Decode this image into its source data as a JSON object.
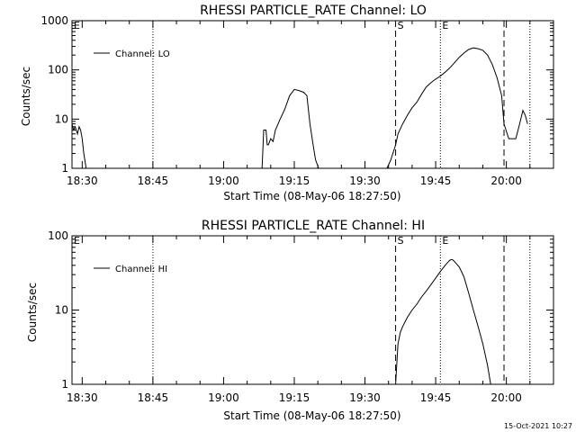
{
  "footer": {
    "timestamp": "15-Oct-2021 10:27"
  },
  "chart_data": [
    {
      "type": "line",
      "title": "RHESSI PARTICLE_RATE Channel: LO",
      "xlabel": "Start Time (08-May-06 18:27:50)",
      "ylabel": "Counts/sec",
      "y_scale": "log",
      "ylim": [
        1,
        1000
      ],
      "y_ticks": [
        1,
        10,
        100,
        1000
      ],
      "y_tick_labels": [
        "1",
        "10",
        "100",
        "1000"
      ],
      "xlim": [
        "18:27:50",
        "20:10:00"
      ],
      "x_ticks": [
        "18:30",
        "18:45",
        "19:00",
        "19:15",
        "19:30",
        "19:45",
        "20:00"
      ],
      "legend": {
        "position": "top-left",
        "entries": [
          "Channel: LO"
        ]
      },
      "markers": [
        {
          "time": "18:27:50",
          "label": "E",
          "style": "dotted"
        },
        {
          "time": "18:45:00",
          "label": "",
          "style": "dotted"
        },
        {
          "time": "19:36:30",
          "label": "S",
          "style": "dashed"
        },
        {
          "time": "19:46:00",
          "label": "E",
          "style": "dotted"
        },
        {
          "time": "19:59:30",
          "label": "",
          "style": "dashed"
        },
        {
          "time": "20:05:00",
          "label": "",
          "style": "dotted"
        }
      ],
      "series": [
        {
          "name": "Channel: LO",
          "segments": [
            {
              "x": [
                "18:27:50",
                "18:28:10",
                "18:28:30",
                "18:29:00",
                "18:29:20",
                "18:29:40",
                "18:30:00",
                "18:30:20",
                "18:30:50"
              ],
              "y": [
                8,
                6,
                7,
                5,
                7,
                6,
                4,
                2,
                1
              ]
            },
            {
              "x": [
                "19:08:10",
                "19:08:30",
                "19:09:00",
                "19:09:15",
                "19:09:30",
                "19:10:00",
                "19:10:30",
                "19:11:00",
                "19:12:00",
                "19:13:00",
                "19:14:00",
                "19:15:00",
                "19:16:00",
                "19:17:00",
                "19:17:40",
                "19:18:20",
                "19:19:00",
                "19:19:30",
                "19:20:10"
              ],
              "y": [
                1,
                6,
                6,
                3,
                3,
                4,
                3.5,
                6,
                10,
                16,
                30,
                40,
                38,
                35,
                30,
                8,
                3,
                1.5,
                1
              ]
            },
            {
              "x": [
                "19:34:40",
                "19:35:30",
                "19:36:30",
                "19:37:00",
                "19:38:00",
                "19:39:00",
                "19:40:00",
                "19:41:00",
                "19:42:00",
                "19:43:00",
                "19:44:00",
                "19:45:00",
                "19:46:00",
                "19:47:00",
                "19:48:00",
                "19:49:00",
                "19:50:00",
                "19:51:00",
                "19:52:00",
                "19:53:00",
                "19:54:00",
                "19:55:00",
                "19:56:00",
                "19:57:00",
                "19:58:00",
                "19:59:00",
                "19:59:30",
                "20:00:30",
                "20:01:30",
                "20:02:00",
                "20:02:40",
                "20:03:30",
                "20:04:00",
                "20:04:30"
              ],
              "y": [
                1,
                1.5,
                3,
                5,
                8,
                12,
                17,
                22,
                32,
                45,
                55,
                65,
                75,
                90,
                110,
                140,
                180,
                220,
                260,
                280,
                270,
                250,
                200,
                130,
                70,
                30,
                8,
                4,
                4,
                4,
                7,
                15,
                12,
                8
              ]
            }
          ]
        }
      ]
    },
    {
      "type": "line",
      "title": "RHESSI PARTICLE_RATE Channel: HI",
      "xlabel": "Start Time (08-May-06 18:27:50)",
      "ylabel": "Counts/sec",
      "y_scale": "log",
      "ylim": [
        1,
        100
      ],
      "y_ticks": [
        1,
        10,
        100
      ],
      "y_tick_labels": [
        "1",
        "10",
        "100"
      ],
      "xlim": [
        "18:27:50",
        "20:10:00"
      ],
      "x_ticks": [
        "18:30",
        "18:45",
        "19:00",
        "19:15",
        "19:30",
        "19:45",
        "20:00"
      ],
      "legend": {
        "position": "top-left",
        "entries": [
          "Channel: HI"
        ]
      },
      "markers": [
        {
          "time": "18:27:50",
          "label": "E",
          "style": "dotted"
        },
        {
          "time": "18:45:00",
          "label": "",
          "style": "dotted"
        },
        {
          "time": "19:36:30",
          "label": "S",
          "style": "dashed"
        },
        {
          "time": "19:46:00",
          "label": "E",
          "style": "dotted"
        },
        {
          "time": "19:59:30",
          "label": "",
          "style": "dashed"
        },
        {
          "time": "20:05:00",
          "label": "",
          "style": "dotted"
        }
      ],
      "series": [
        {
          "name": "Channel: HI",
          "segments": [
            {
              "x": [
                "19:36:30",
                "19:36:40",
                "19:37:00",
                "19:37:30",
                "19:38:00",
                "19:39:00",
                "19:40:00",
                "19:41:00",
                "19:42:00",
                "19:43:00",
                "19:44:00",
                "19:45:00",
                "19:46:00",
                "19:47:00",
                "19:48:00",
                "19:48:30",
                "19:49:00",
                "19:50:00",
                "19:51:00",
                "19:52:00",
                "19:53:00",
                "19:54:00",
                "19:55:00",
                "19:56:00",
                "19:56:40"
              ],
              "y": [
                1,
                1.5,
                3.5,
                5,
                6,
                8,
                10,
                12,
                15,
                18,
                22,
                27,
                33,
                40,
                47,
                48,
                45,
                38,
                28,
                17,
                10,
                6,
                3.5,
                1.8,
                1
              ]
            }
          ]
        }
      ]
    }
  ]
}
